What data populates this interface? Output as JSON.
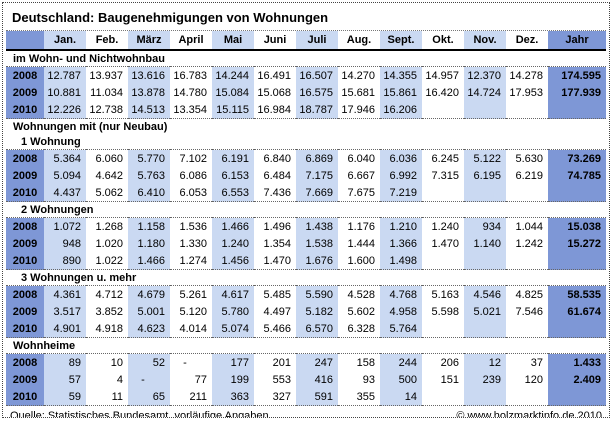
{
  "title": "Deutschland: Baugenehmigungen von Wohnungen",
  "colors": {
    "accent_dark": "#7E97D6",
    "accent_light": "#CAD9F2",
    "rule_dotted": "#666666"
  },
  "footer": {
    "source": "Quelle: Statistisches Bundesamt, vorläufige Angaben",
    "copyright": "© www.holzmarktinfo.de 2010"
  },
  "chart_data": {
    "type": "table",
    "title": "Deutschland: Baugenehmigungen von Wohnungen",
    "columns": [
      "",
      "Jan.",
      "Feb.",
      "März",
      "April",
      "Mai",
      "Juni",
      "Juli",
      "Aug.",
      "Sept.",
      "Okt.",
      "Nov.",
      "Dez.",
      "Jahr"
    ],
    "sections": [
      {
        "label": "im Wohn- und Nichtwohnbau",
        "indent": false,
        "rule_top": true,
        "rule_bottom": true,
        "rows": [
          {
            "year": "2008",
            "months": [
              "12.787",
              "13.937",
              "13.616",
              "16.783",
              "14.244",
              "16.491",
              "16.507",
              "14.270",
              "14.355",
              "14.957",
              "12.370",
              "14.278"
            ],
            "jahr": "174.595"
          },
          {
            "year": "2009",
            "months": [
              "10.881",
              "11.034",
              "13.878",
              "14.780",
              "15.084",
              "15.068",
              "16.575",
              "15.681",
              "15.861",
              "16.420",
              "14.724",
              "17.953"
            ],
            "jahr": "177.939"
          },
          {
            "year": "2010",
            "months": [
              "12.226",
              "12.738",
              "14.513",
              "13.354",
              "15.115",
              "16.984",
              "18.787",
              "17.946",
              "16.206",
              "",
              "",
              ""
            ],
            "jahr": ""
          }
        ]
      },
      {
        "label": "Wohnungen mit (nur Neubau)",
        "indent": false,
        "rule_top": true,
        "rule_bottom": false,
        "rows": []
      },
      {
        "label": "1 Wohnung",
        "indent": true,
        "rule_top": false,
        "rule_bottom": true,
        "rows": [
          {
            "year": "2008",
            "months": [
              "5.364",
              "6.060",
              "5.770",
              "7.102",
              "6.191",
              "6.840",
              "6.869",
              "6.040",
              "6.036",
              "6.245",
              "5.122",
              "5.630"
            ],
            "jahr": "73.269"
          },
          {
            "year": "2009",
            "months": [
              "5.094",
              "4.642",
              "5.763",
              "6.086",
              "6.153",
              "6.484",
              "7.175",
              "6.667",
              "6.992",
              "7.315",
              "6.195",
              "6.219"
            ],
            "jahr": "74.785"
          },
          {
            "year": "2010",
            "months": [
              "4.437",
              "5.062",
              "6.410",
              "6.053",
              "6.553",
              "7.436",
              "7.669",
              "7.675",
              "7.219",
              "",
              "",
              ""
            ],
            "jahr": ""
          }
        ]
      },
      {
        "label": "2 Wohnungen",
        "indent": true,
        "rule_top": true,
        "rule_bottom": true,
        "rows": [
          {
            "year": "2008",
            "months": [
              "1.072",
              "1.268",
              "1.158",
              "1.536",
              "1.466",
              "1.496",
              "1.438",
              "1.176",
              "1.210",
              "1.240",
              "934",
              "1.044"
            ],
            "jahr": "15.038"
          },
          {
            "year": "2009",
            "months": [
              "948",
              "1.020",
              "1.180",
              "1.330",
              "1.240",
              "1.354",
              "1.538",
              "1.444",
              "1.366",
              "1.470",
              "1.140",
              "1.242"
            ],
            "jahr": "15.272"
          },
          {
            "year": "2010",
            "months": [
              "890",
              "1.022",
              "1.466",
              "1.274",
              "1.456",
              "1.470",
              "1.676",
              "1.600",
              "1.498",
              "",
              "",
              ""
            ],
            "jahr": ""
          }
        ]
      },
      {
        "label": "3 Wohnungen u. mehr",
        "indent": true,
        "rule_top": true,
        "rule_bottom": true,
        "rows": [
          {
            "year": "2008",
            "months": [
              "4.361",
              "4.712",
              "4.679",
              "5.261",
              "4.617",
              "5.485",
              "5.590",
              "4.528",
              "4.768",
              "5.163",
              "4.546",
              "4.825"
            ],
            "jahr": "58.535"
          },
          {
            "year": "2009",
            "months": [
              "3.517",
              "3.852",
              "5.001",
              "5.120",
              "5.780",
              "4.497",
              "5.182",
              "5.602",
              "4.958",
              "5.598",
              "5.021",
              "7.546"
            ],
            "jahr": "61.674"
          },
          {
            "year": "2010",
            "months": [
              "4.901",
              "4.918",
              "4.623",
              "4.014",
              "5.074",
              "5.466",
              "6.570",
              "6.328",
              "5.764",
              "",
              "",
              ""
            ],
            "jahr": ""
          }
        ]
      },
      {
        "label": "Wohnheime",
        "indent": false,
        "rule_top": true,
        "rule_bottom": true,
        "rows": [
          {
            "year": "2008",
            "months": [
              "89",
              "10",
              "52",
              "-",
              "177",
              "201",
              "247",
              "158",
              "244",
              "206",
              "12",
              "37"
            ],
            "jahr": "1.433"
          },
          {
            "year": "2009",
            "months": [
              "57",
              "4",
              "-",
              "77",
              "199",
              "553",
              "416",
              "93",
              "500",
              "151",
              "239",
              "120"
            ],
            "jahr": "2.409"
          },
          {
            "year": "2010",
            "months": [
              "59",
              "11",
              "65",
              "211",
              "363",
              "327",
              "591",
              "355",
              "14",
              "",
              "",
              ""
            ],
            "jahr": ""
          }
        ]
      }
    ]
  }
}
